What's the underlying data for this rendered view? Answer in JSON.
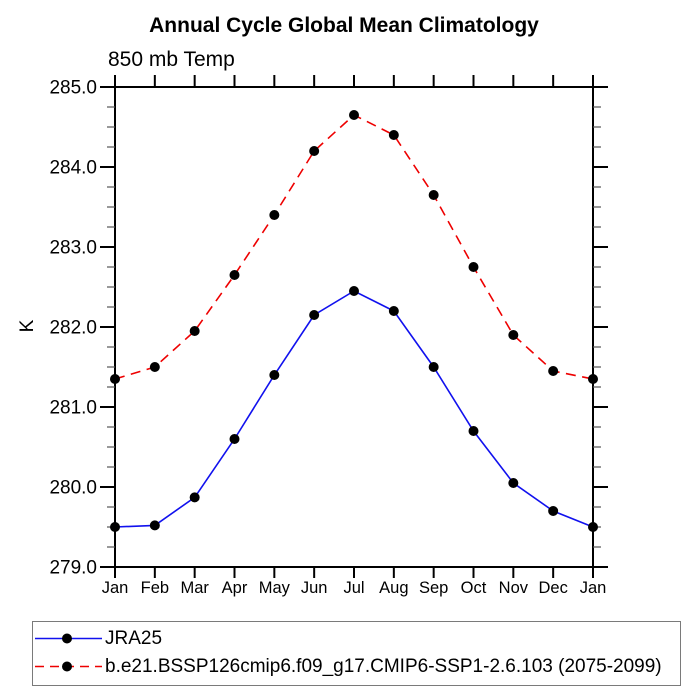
{
  "page": {
    "background": "#ffffff",
    "text_color": "#000000"
  },
  "chart_data": {
    "type": "line",
    "title": "Annual Cycle Global Mean Climatology",
    "subtitle": "850 mb Temp",
    "xlabel": "",
    "ylabel": "K",
    "ylim": [
      279.0,
      285.0
    ],
    "ytick_major_step": 1.0,
    "ytick_minor_step": 0.25,
    "ytick_labels": [
      "279.0",
      "280.0",
      "281.0",
      "282.0",
      "283.0",
      "284.0",
      "285.0"
    ],
    "categories": [
      "Jan",
      "Feb",
      "Mar",
      "Apr",
      "May",
      "Jun",
      "Jul",
      "Aug",
      "Sep",
      "Oct",
      "Nov",
      "Dec",
      "Jan"
    ],
    "grid": false,
    "legend_position": "bottom-left-box",
    "axis_color": "#000000",
    "minor_tick_color": "#555555",
    "marker": {
      "shape": "circle",
      "color": "#000000",
      "radius": 5
    },
    "series": [
      {
        "name": "JRA25",
        "color": "#1111ee",
        "line_style": "solid",
        "values": [
          279.5,
          279.52,
          279.87,
          280.6,
          281.4,
          282.15,
          282.45,
          282.2,
          281.5,
          280.7,
          280.05,
          279.7,
          279.5
        ]
      },
      {
        "name": "b.e21.BSSP126cmip6.f09_g17.CMIP6-SSP1-2.6.103 (2075-2099)",
        "color": "#ee0000",
        "line_style": "dashed",
        "values": [
          281.35,
          281.5,
          281.95,
          282.65,
          283.4,
          284.2,
          284.65,
          284.4,
          283.65,
          282.75,
          281.9,
          281.45,
          281.35
        ]
      }
    ]
  }
}
